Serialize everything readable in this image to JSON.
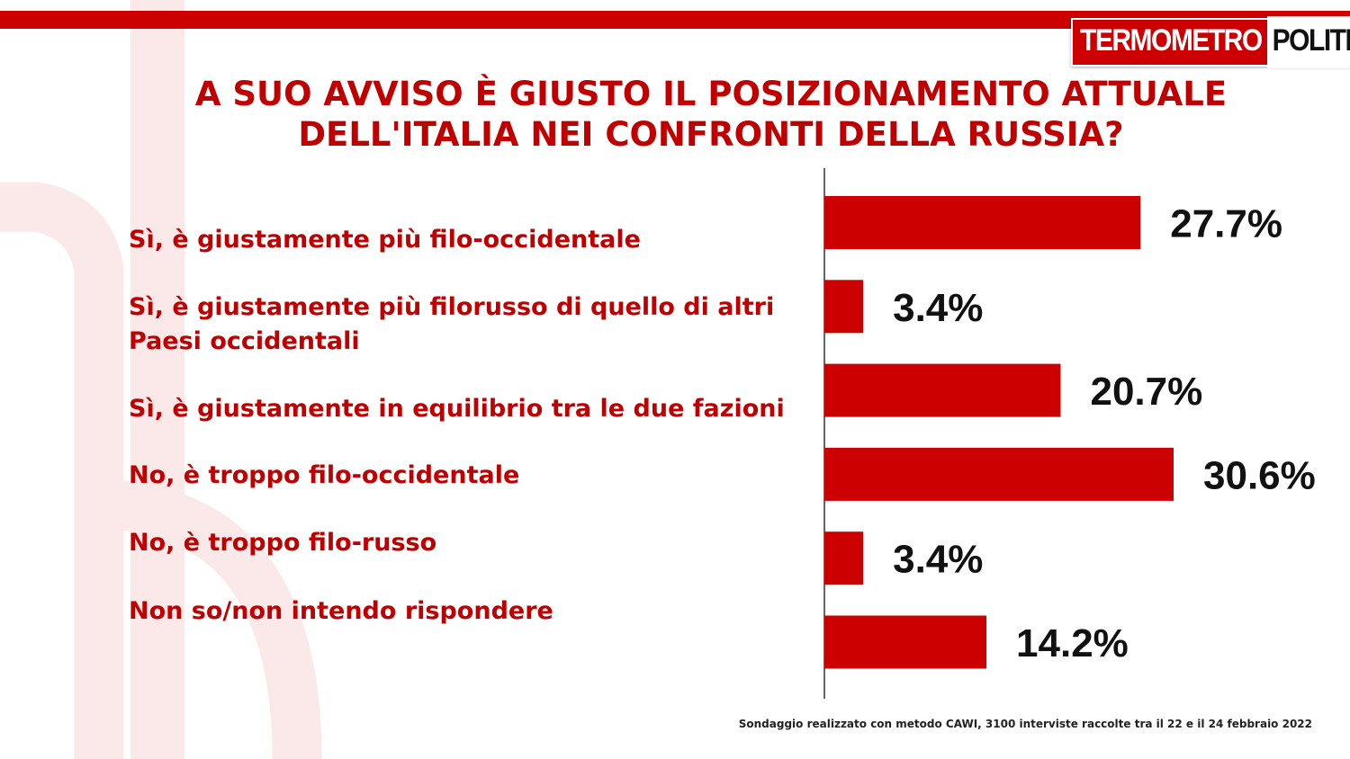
{
  "colors": {
    "accent": "#cc0000",
    "label_text": "#c00000",
    "value_text": "#111111",
    "axis": "#333333",
    "background": "#ffffff",
    "decoration": "#fbe9e9"
  },
  "brand": {
    "logo_part1": "TERMOMETRO",
    "logo_part2": "POLITICO"
  },
  "title_lines": [
    "A SUO AVVISO È GIUSTO IL POSIZIONAMENTO ATTUALE",
    "DELL'ITALIA NEI CONFRONTI DELLA RUSSIA?"
  ],
  "chart_data": {
    "type": "bar",
    "orientation": "horizontal",
    "categories": [
      [
        "Sì, è giustamente più filo-occidentale"
      ],
      [
        "Sì, è giustamente più filorusso di quello di altri",
        "Paesi occidentali"
      ],
      [
        "Sì, è giustamente in equilibrio tra le due fazioni"
      ],
      [
        "No, è troppo filo-occidentale"
      ],
      [
        "No, è troppo filo-russo"
      ],
      [
        "Non so/non intendo rispondere"
      ]
    ],
    "values": [
      27.7,
      3.4,
      20.7,
      30.6,
      3.4,
      14.2
    ],
    "value_labels": [
      "27.7%",
      "3.4%",
      "20.7%",
      "30.6%",
      "3.4%",
      "14.2%"
    ],
    "unit": "%",
    "xlim": [
      0,
      30.6
    ],
    "grid": false,
    "legend": "none"
  },
  "footnote": "Sondaggio realizzato con metodo CAWI, 3100 interviste raccolte tra il 22 e il 24 febbraio 2022"
}
